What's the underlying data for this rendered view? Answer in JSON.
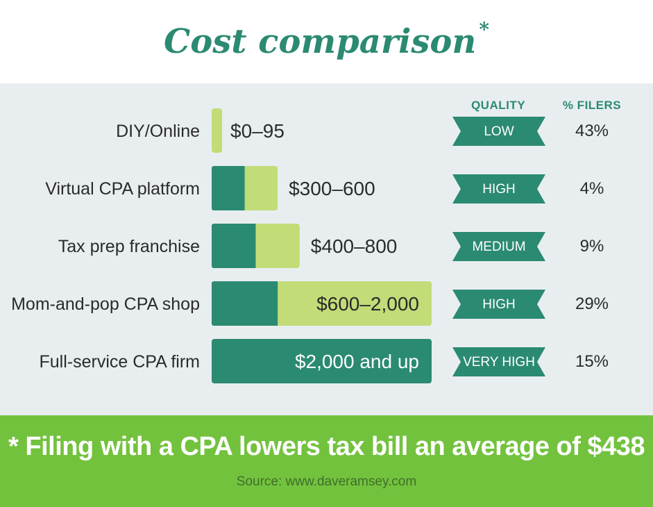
{
  "title": "Cost comparison",
  "title_mark": "*",
  "columns": {
    "quality": "QUALITY",
    "filers": "% FILERS"
  },
  "footer": {
    "note": "* Filing with a CPA lowers tax bill an average of $438",
    "source": "Source: www.daveramsey.com"
  },
  "colors": {
    "dark": "#2b8a72",
    "light": "#c2dc78",
    "footer": "#73c23e",
    "panel": "#e8eef0"
  },
  "chart_data": {
    "type": "bar",
    "unit": "$",
    "categories": [
      "DIY/Online",
      "Virtual CPA platform",
      "Tax prep franchise",
      "Mom-and-pop CPA shop",
      "Full-service CPA firm"
    ],
    "ranges": [
      {
        "min": 0,
        "max": 95,
        "label": "$0–95"
      },
      {
        "min": 300,
        "max": 600,
        "label": "$300–600"
      },
      {
        "min": 400,
        "max": 800,
        "label": "$400–800"
      },
      {
        "min": 600,
        "max": 2000,
        "label": "$600–2,000"
      },
      {
        "min": 2000,
        "max": null,
        "label": "$2,000 and up"
      }
    ],
    "quality": [
      "LOW",
      "HIGH",
      "MEDIUM",
      "HIGH",
      "VERY HIGH"
    ],
    "percent_filers": [
      "43%",
      "4%",
      "9%",
      "29%",
      "15%"
    ]
  }
}
